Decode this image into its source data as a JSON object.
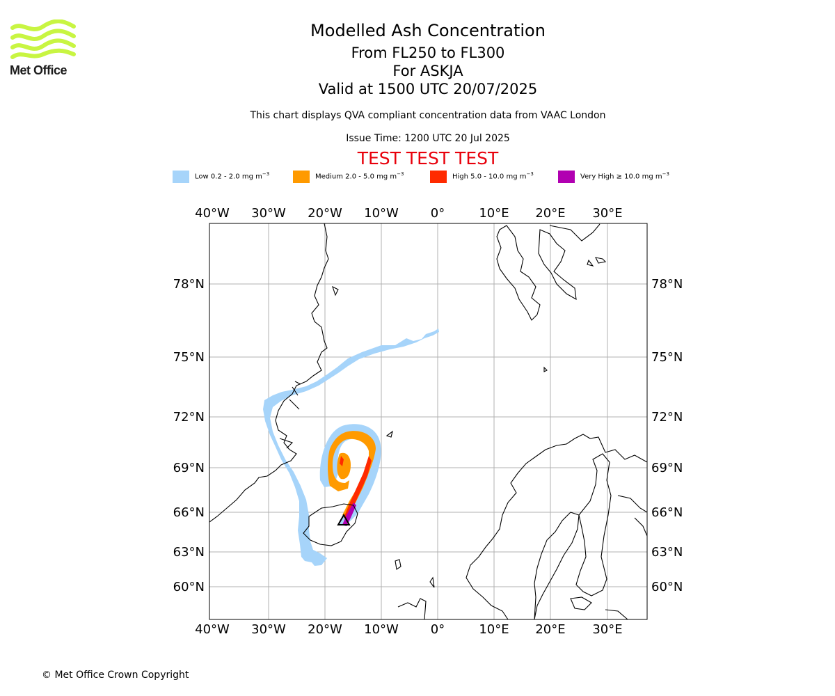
{
  "header": {
    "title": "Modelled Ash Concentration",
    "subtitle_levels": "From FL250 to FL300",
    "subtitle_volcano": "For ASKJA",
    "subtitle_valid": "Valid at 1500 UTC 20/07/2025",
    "description": "This chart displays QVA compliant concentration data from VAAC London",
    "issue_time": "Issue Time: 1200 UTC 20 Jul 2025",
    "test_banner": "TEST TEST TEST"
  },
  "logo": {
    "text": "Met Office",
    "color": "#c8f542"
  },
  "legend": [
    {
      "label": "Low 0.2 - 2.0 mg m",
      "sup": "−3",
      "color": "#a6d4fa"
    },
    {
      "label": "Medium 2.0 - 5.0 mg m",
      "sup": "−3",
      "color": "#ff9a00"
    },
    {
      "label": "High 5.0 - 10.0 mg m",
      "sup": "−3",
      "color": "#ff2a00"
    },
    {
      "label": "Very High  ≥  10.0 mg m",
      "sup": "−3",
      "color": "#b100b1"
    }
  ],
  "map": {
    "lon_labels": [
      "40°W",
      "30°W",
      "20°W",
      "10°W",
      "0°",
      "10°E",
      "20°E",
      "30°E"
    ],
    "lat_labels": [
      "78°N",
      "75°N",
      "72°N",
      "69°N",
      "66°N",
      "63°N",
      "60°N"
    ],
    "volcano": "ASKJA"
  },
  "footer": {
    "copyright": "© Met Office Crown Copyright"
  }
}
